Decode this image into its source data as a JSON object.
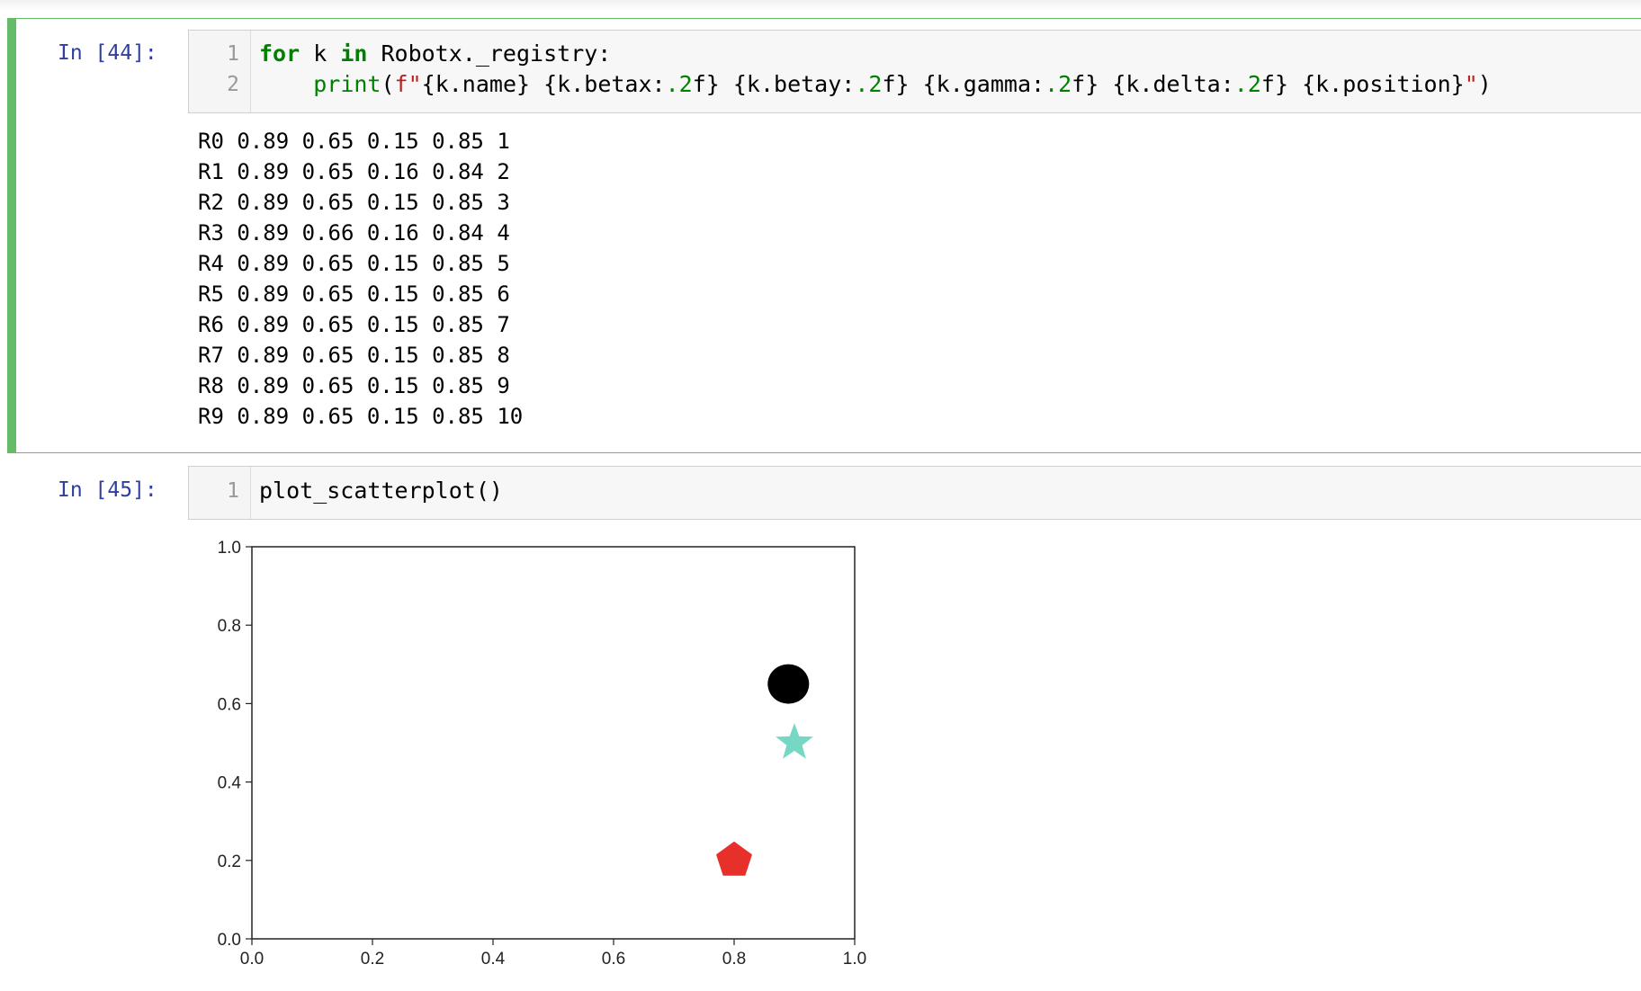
{
  "cells": [
    {
      "prompt": "In [44]:",
      "line_numbers": [
        "1",
        "2"
      ],
      "code": {
        "line1": {
          "for": "for",
          "var": " k ",
          "in": "in",
          "rest": " Robotx._registry:"
        },
        "line2": {
          "indent": "    ",
          "print": "print",
          "paren_open": "(",
          "fprefix": "f\"",
          "segments": [
            {
              "t": "{k.name} ",
              "c": "plain"
            },
            {
              "t": "{k.betax:",
              "c": "plain"
            },
            {
              "t": ".2",
              "c": "fspec"
            },
            {
              "t": "f} ",
              "c": "plain"
            },
            {
              "t": "{k.betay:",
              "c": "plain"
            },
            {
              "t": ".2",
              "c": "fspec"
            },
            {
              "t": "f} ",
              "c": "plain"
            },
            {
              "t": "{k.gamma:",
              "c": "plain"
            },
            {
              "t": ".2",
              "c": "fspec"
            },
            {
              "t": "f} ",
              "c": "plain"
            },
            {
              "t": "{k.delta:",
              "c": "plain"
            },
            {
              "t": ".2",
              "c": "fspec"
            },
            {
              "t": "f} ",
              "c": "plain"
            },
            {
              "t": "{k.position}",
              "c": "plain"
            }
          ],
          "fsuffix": "\"",
          "paren_close": ")"
        }
      },
      "output": [
        "R0 0.89 0.65 0.15 0.85 1",
        "R1 0.89 0.65 0.16 0.84 2",
        "R2 0.89 0.65 0.15 0.85 3",
        "R3 0.89 0.66 0.16 0.84 4",
        "R4 0.89 0.65 0.15 0.85 5",
        "R5 0.89 0.65 0.15 0.85 6",
        "R6 0.89 0.65 0.15 0.85 7",
        "R7 0.89 0.65 0.15 0.85 8",
        "R8 0.89 0.65 0.15 0.85 9",
        "R9 0.89 0.65 0.15 0.85 10"
      ]
    },
    {
      "prompt": "In [45]:",
      "line_numbers": [
        "1"
      ],
      "code": {
        "line1": "plot_scatterplot()"
      }
    }
  ],
  "chart_data": {
    "type": "scatter",
    "xlim": [
      0.0,
      1.0
    ],
    "ylim": [
      0.0,
      1.0
    ],
    "x_ticks": [
      "0.0",
      "0.2",
      "0.4",
      "0.6",
      "0.8",
      "1.0"
    ],
    "y_ticks": [
      "0.0",
      "0.2",
      "0.4",
      "0.6",
      "0.8",
      "1.0"
    ],
    "grid": false,
    "points": [
      {
        "x": 0.89,
        "y": 0.65,
        "marker": "circle",
        "color": "#000000"
      },
      {
        "x": 0.9,
        "y": 0.5,
        "marker": "star",
        "color": "#76d7c4"
      },
      {
        "x": 0.8,
        "y": 0.2,
        "marker": "pentagon",
        "color": "#e8302a"
      }
    ]
  },
  "colors": {
    "selected_cell_border": "#66bb66",
    "prompt": "#303f9f",
    "keyword": "#008000",
    "string": "#ba2121"
  }
}
